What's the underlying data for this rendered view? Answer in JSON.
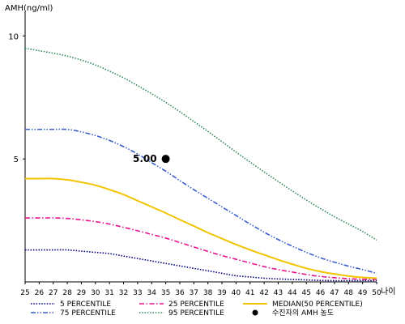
{
  "chart_data": {
    "type": "line",
    "ylabel": "AMH(ng/ml)",
    "xlabel": "나이",
    "x": [
      25,
      26,
      27,
      28,
      29,
      30,
      31,
      32,
      33,
      34,
      35,
      36,
      37,
      38,
      39,
      40,
      41,
      42,
      43,
      44,
      45,
      46,
      47,
      48,
      49,
      50
    ],
    "xlim": [
      25,
      50
    ],
    "ylim": [
      0,
      11
    ],
    "yticks": [
      5,
      10
    ],
    "grid": false,
    "legend_position": "bottom",
    "series": [
      {
        "name": "5 PERCENTILE",
        "color": "#000080",
        "dash": "dotted",
        "values": [
          1.3,
          1.3,
          1.3,
          1.3,
          1.25,
          1.2,
          1.15,
          1.05,
          0.95,
          0.85,
          0.75,
          0.65,
          0.55,
          0.45,
          0.35,
          0.25,
          0.2,
          0.15,
          0.12,
          0.1,
          0.08,
          0.06,
          0.05,
          0.05,
          0.05,
          0.05
        ]
      },
      {
        "name": "25 PERCENTILE",
        "color": "#e8128c",
        "dash": "dashdot",
        "values": [
          2.6,
          2.6,
          2.6,
          2.58,
          2.52,
          2.45,
          2.35,
          2.22,
          2.08,
          1.93,
          1.78,
          1.6,
          1.42,
          1.24,
          1.07,
          0.92,
          0.77,
          0.62,
          0.5,
          0.4,
          0.3,
          0.22,
          0.17,
          0.13,
          0.11,
          0.1
        ]
      },
      {
        "name": "MEDIAN(50 PERCENTILE)",
        "color": "#f2c400",
        "dash": "solid",
        "values": [
          4.2,
          4.2,
          4.2,
          4.15,
          4.05,
          3.93,
          3.75,
          3.55,
          3.3,
          3.05,
          2.8,
          2.53,
          2.27,
          2.0,
          1.76,
          1.52,
          1.3,
          1.1,
          0.9,
          0.72,
          0.55,
          0.42,
          0.32,
          0.24,
          0.18,
          0.15
        ]
      },
      {
        "name": "75 PERCENTILE",
        "color": "#3a5fcd",
        "dash": "dashdotdot",
        "values": [
          6.2,
          6.2,
          6.2,
          6.2,
          6.1,
          5.95,
          5.75,
          5.5,
          5.2,
          4.85,
          4.5,
          4.12,
          3.75,
          3.4,
          3.05,
          2.7,
          2.35,
          2.02,
          1.72,
          1.45,
          1.2,
          0.98,
          0.8,
          0.64,
          0.5,
          0.35
        ]
      },
      {
        "name": "95 PERCENTILE",
        "color": "#2e8b57",
        "dash": "dotted",
        "values": [
          9.5,
          9.4,
          9.3,
          9.18,
          9.02,
          8.82,
          8.57,
          8.3,
          7.98,
          7.65,
          7.3,
          6.92,
          6.52,
          6.12,
          5.7,
          5.28,
          4.87,
          4.47,
          4.08,
          3.7,
          3.33,
          2.98,
          2.65,
          2.35,
          2.05,
          1.7
        ]
      }
    ],
    "annotations": [
      {
        "name": "수진자의 AMH 농도",
        "x": 35,
        "y": 5.0,
        "label": "5.00",
        "color": "#000000"
      }
    ]
  }
}
